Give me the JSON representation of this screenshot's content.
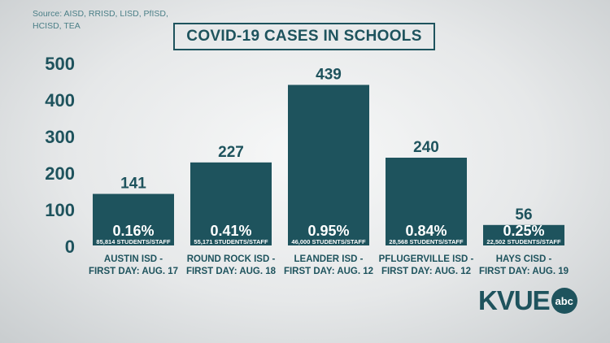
{
  "source": "Source: AISD, RRISD, LISD, PfISD, HCISD, TEA",
  "title": "COVID-19 CASES IN SCHOOLS",
  "logo": {
    "text": "KVUE",
    "network": "abc"
  },
  "colors": {
    "bar": "#1e535d",
    "text": "#1e535d",
    "source": "#4b7f87",
    "bar_label": "#ffffff"
  },
  "chart_data": {
    "type": "bar",
    "title": "COVID-19 CASES IN SCHOOLS",
    "xlabel": "",
    "ylabel": "",
    "ylim": [
      0,
      500
    ],
    "yticks": [
      0,
      100,
      200,
      300,
      400,
      500
    ],
    "grid": false,
    "categories": [
      [
        "AUSTIN ISD -",
        "FIRST DAY: AUG. 17"
      ],
      [
        "ROUND ROCK ISD -",
        "FIRST DAY: AUG. 18"
      ],
      [
        "LEANDER ISD -",
        "FIRST DAY: AUG. 12"
      ],
      [
        "PFLUGERVILLE ISD -",
        "FIRST DAY: AUG. 12"
      ],
      [
        "HAYS CISD -",
        "FIRST DAY: AUG. 19"
      ]
    ],
    "values": [
      141,
      227,
      439,
      240,
      56
    ],
    "percent_labels": [
      "0.16%",
      "0.41%",
      "0.95%",
      "0.84%",
      "0.25%"
    ],
    "population_labels": [
      "85,814 STUDENTS/STAFF",
      "55,171 STUDENTS/STAFF",
      "46,000 STUDENTS/STAFF",
      "28,568 STUDENTS/STAFF",
      "22,502 STUDENTS/STAFF"
    ]
  }
}
